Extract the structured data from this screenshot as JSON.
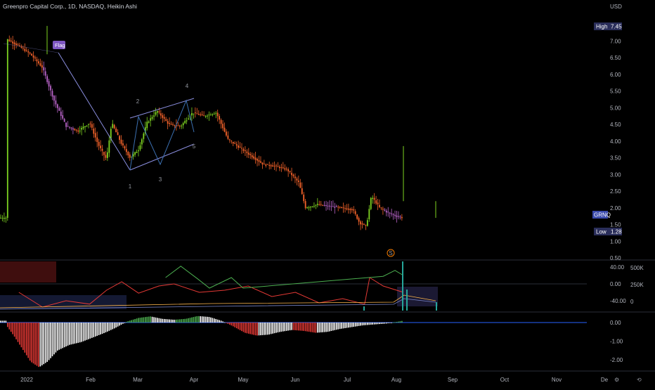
{
  "header": {
    "title": "Greenpro Capital Corp., 1D, NASDAQ, Heikin Ashi",
    "currency": "USD"
  },
  "price_axis": {
    "ticks": [
      "7.00",
      "6.50",
      "6.00",
      "5.50",
      "5.00",
      "4.50",
      "4.00",
      "3.50",
      "3.00",
      "2.50",
      "2.00",
      "1.50",
      "1.00",
      "0.50"
    ],
    "high_label": "High",
    "high_value": "7.45",
    "low_label": "Low",
    "low_value": "1.28",
    "ticker_label": "GRNQ"
  },
  "osc_axis": {
    "ticks": [
      "40.00",
      "0.00",
      "-40.00"
    ],
    "volume_ticks": [
      "500K",
      "250K",
      "0"
    ]
  },
  "hist_axis": {
    "ticks": [
      "0.00",
      "-1.00",
      "-2.00"
    ]
  },
  "time_axis": {
    "labels": [
      "2022",
      "Feb",
      "Mar",
      "Apr",
      "May",
      "Jun",
      "Jul",
      "Aug",
      "Sep",
      "Oct",
      "Nov",
      "De"
    ]
  },
  "annotations": {
    "flag": "Flag",
    "waves": [
      "1",
      "2",
      "3",
      "4",
      "5"
    ],
    "event_marker": "S"
  },
  "colors": {
    "up": "#7ed321",
    "down": "#f5632a",
    "pink": "#b964c9",
    "wedge": "#8b8fe0",
    "osc_red": "#e53935",
    "osc_green": "#4caf50",
    "hist_red": "#e53935",
    "hist_white": "#ffffff",
    "hist_green": "#4caf50",
    "blue_line": "#2962ff"
  },
  "chart_data": {
    "type": "candlestick",
    "title": "Greenpro Capital Corp., 1D, NASDAQ, Heikin Ashi",
    "ylim": [
      0.5,
      7.6
    ],
    "x_range": [
      "2022-01-01",
      "2022-12-31"
    ],
    "high": 7.45,
    "low": 1.28,
    "last": 1.7,
    "price_path": [
      [
        "2022-01-01",
        7.05
      ],
      [
        "2022-01-08",
        6.85
      ],
      [
        "2022-01-15",
        6.6
      ],
      [
        "2022-01-22",
        6.2
      ],
      [
        "2022-01-29",
        5.2
      ],
      [
        "2022-02-05",
        4.45
      ],
      [
        "2022-02-12",
        4.3
      ],
      [
        "2022-02-19",
        4.55
      ],
      [
        "2022-02-24",
        3.9
      ],
      [
        "2022-03-01",
        3.45
      ],
      [
        "2022-03-04",
        4.55
      ],
      [
        "2022-03-10",
        3.9
      ],
      [
        "2022-03-15",
        3.5
      ],
      [
        "2022-03-20",
        3.75
      ],
      [
        "2022-03-25",
        4.55
      ],
      [
        "2022-03-31",
        4.9
      ],
      [
        "2022-04-07",
        4.5
      ],
      [
        "2022-04-14",
        4.45
      ],
      [
        "2022-04-21",
        4.85
      ],
      [
        "2022-04-28",
        4.75
      ],
      [
        "2022-05-05",
        4.85
      ],
      [
        "2022-05-12",
        4.05
      ],
      [
        "2022-05-19",
        3.8
      ],
      [
        "2022-05-26",
        3.55
      ],
      [
        "2022-06-02",
        3.3
      ],
      [
        "2022-06-09",
        3.25
      ],
      [
        "2022-06-16",
        3.15
      ],
      [
        "2022-06-23",
        2.75
      ],
      [
        "2022-06-27",
        2.0
      ],
      [
        "2022-07-04",
        2.1
      ],
      [
        "2022-07-11",
        2.05
      ],
      [
        "2022-07-18",
        2.0
      ],
      [
        "2022-07-25",
        1.95
      ],
      [
        "2022-07-29",
        1.55
      ],
      [
        "2022-08-02",
        1.45
      ],
      [
        "2022-08-05",
        2.35
      ],
      [
        "2022-08-10",
        2.0
      ],
      [
        "2022-08-15",
        1.85
      ],
      [
        "2022-08-20",
        1.75
      ],
      [
        "2022-08-24",
        1.7
      ]
    ],
    "oscillator": {
      "ylim": [
        -60,
        60
      ],
      "series": [
        {
          "color": "#e53935",
          "values": [
            [
              "2022-01-08",
              -20
            ],
            [
              "2022-01-22",
              -55
            ],
            [
              "2022-02-05",
              -40
            ],
            [
              "2022-02-19",
              -48
            ],
            [
              "2022-03-01",
              -15
            ],
            [
              "2022-03-10",
              5
            ],
            [
              "2022-03-20",
              -22
            ],
            [
              "2022-04-01",
              -5
            ],
            [
              "2022-04-10",
              0
            ],
            [
              "2022-04-25",
              -20
            ],
            [
              "2022-05-10",
              -15
            ],
            [
              "2022-05-24",
              -5
            ],
            [
              "2022-06-07",
              -30
            ],
            [
              "2022-06-21",
              -20
            ],
            [
              "2022-07-05",
              -45
            ],
            [
              "2022-07-19",
              -35
            ],
            [
              "2022-08-01",
              -48
            ],
            [
              "2022-08-04",
              15
            ],
            [
              "2022-08-12",
              -5
            ],
            [
              "2022-08-24",
              -20
            ]
          ]
        },
        {
          "color": "#4caf50",
          "values": [
            [
              "2022-04-05",
              15
            ],
            [
              "2022-04-14",
              42
            ],
            [
              "2022-04-24",
              12
            ],
            [
              "2022-05-01",
              -10
            ],
            [
              "2022-05-14",
              15
            ],
            [
              "2022-05-21",
              -10
            ],
            [
              "2022-08-12",
              18
            ],
            [
              "2022-08-19",
              32
            ],
            [
              "2022-08-24",
              20
            ]
          ]
        }
      ]
    },
    "histogram": {
      "ylim": [
        -2.6,
        0.3
      ],
      "bars": [
        [
          "2022-01-01",
          -0.2
        ],
        [
          "2022-01-05",
          -0.7
        ],
        [
          "2022-01-10",
          -1.4
        ],
        [
          "2022-01-15",
          -2.1
        ],
        [
          "2022-01-20",
          -2.4
        ],
        [
          "2022-01-25",
          -2.1
        ],
        [
          "2022-01-31",
          -1.5
        ],
        [
          "2022-02-07",
          -1.2
        ],
        [
          "2022-02-14",
          -1.05
        ],
        [
          "2022-02-21",
          -0.8
        ],
        [
          "2022-02-28",
          -0.55
        ],
        [
          "2022-03-06",
          -0.3
        ],
        [
          "2022-03-13",
          0.05
        ],
        [
          "2022-03-20",
          0.25
        ],
        [
          "2022-03-27",
          0.33
        ],
        [
          "2022-04-03",
          0.2
        ],
        [
          "2022-04-10",
          0.15
        ],
        [
          "2022-04-17",
          0.2
        ],
        [
          "2022-04-24",
          0.35
        ],
        [
          "2022-05-01",
          0.3
        ],
        [
          "2022-05-08",
          0.1
        ],
        [
          "2022-05-15",
          -0.2
        ],
        [
          "2022-05-22",
          -0.55
        ],
        [
          "2022-05-29",
          -0.7
        ],
        [
          "2022-06-05",
          -0.65
        ],
        [
          "2022-06-12",
          -0.5
        ],
        [
          "2022-06-19",
          -0.4
        ],
        [
          "2022-06-26",
          -0.45
        ],
        [
          "2022-07-03",
          -0.55
        ],
        [
          "2022-07-10",
          -0.5
        ],
        [
          "2022-07-17",
          -0.35
        ],
        [
          "2022-07-24",
          -0.25
        ],
        [
          "2022-07-31",
          -0.15
        ],
        [
          "2022-08-07",
          -0.1
        ],
        [
          "2022-08-14",
          -0.05
        ],
        [
          "2022-08-21",
          0.05
        ],
        [
          "2022-08-24",
          0.1
        ]
      ]
    }
  }
}
